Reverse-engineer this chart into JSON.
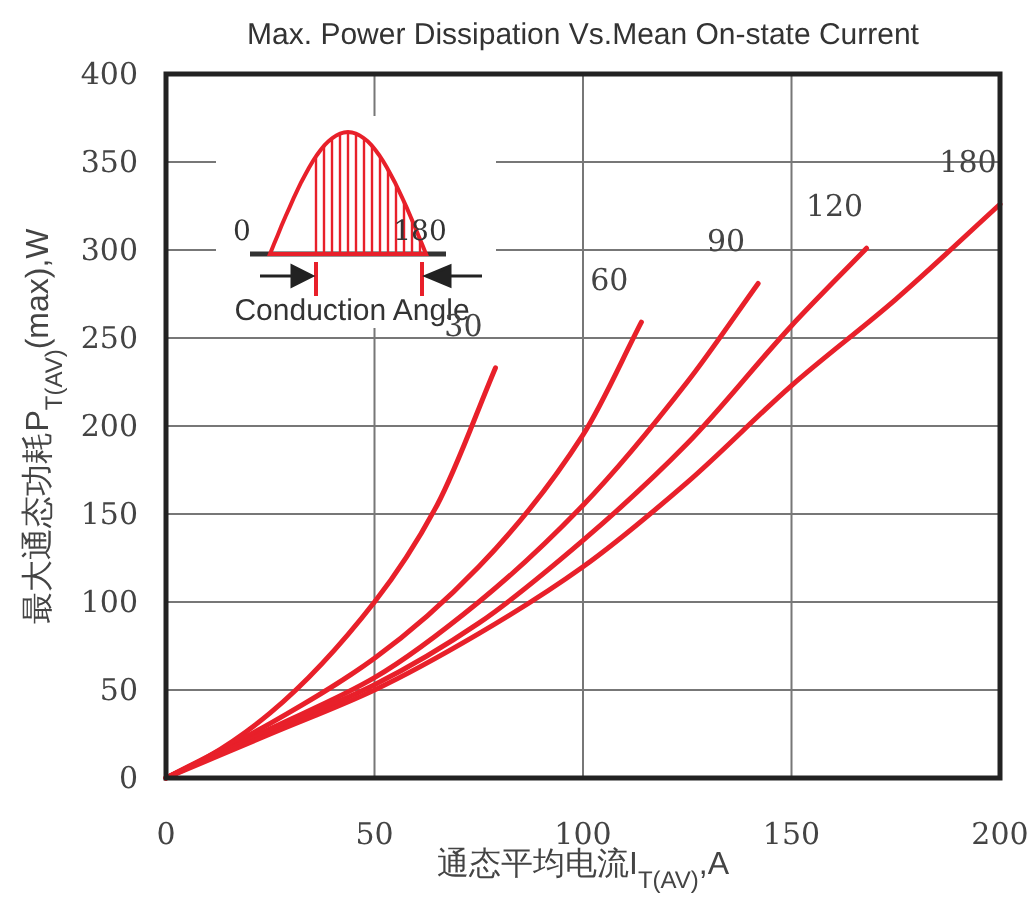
{
  "chart_data": {
    "type": "line",
    "title": "Max. Power Dissipation Vs.Mean On-state Current",
    "xlabel": "通态平均电流I$_{T(AV)}$,A",
    "ylabel": "最大通态功耗P$_{T(AV)}$(max),W",
    "annotations": [
      "0",
      "180",
      "Conduction Angle"
    ],
    "xlim": [
      0,
      200
    ],
    "ylim": [
      0,
      400
    ],
    "xticks": [
      0,
      50,
      100,
      150,
      200
    ],
    "yticks": [
      0,
      50,
      100,
      150,
      200,
      250,
      300,
      350,
      400
    ],
    "grid": true,
    "marker": "none",
    "line_style": "solid",
    "series": [
      {
        "name": "30",
        "color": "#e8202a",
        "x": [
          0,
          10,
          25,
          50,
          65,
          79
        ],
        "values": [
          0,
          12,
          37,
          100,
          155,
          233
        ]
      },
      {
        "name": "60",
        "color": "#e8202a",
        "x": [
          0,
          25,
          50,
          75,
          100,
          114
        ],
        "values": [
          0,
          31,
          68,
          120,
          195,
          259
        ]
      },
      {
        "name": "90",
        "color": "#e8202a",
        "x": [
          0,
          25,
          50,
          75,
          100,
          125,
          142
        ],
        "values": [
          0,
          28,
          57,
          100,
          155,
          225,
          281
        ]
      },
      {
        "name": "120",
        "color": "#e8202a",
        "x": [
          0,
          25,
          50,
          75,
          100,
          125,
          150,
          168
        ],
        "values": [
          0,
          27,
          53,
          88,
          135,
          190,
          257,
          301
        ]
      },
      {
        "name": "180",
        "color": "#e8202a",
        "x": [
          0,
          25,
          50,
          75,
          100,
          125,
          150,
          175,
          200
        ],
        "values": [
          0,
          25,
          50,
          82,
          120,
          168,
          223,
          272,
          326
        ]
      }
    ]
  }
}
